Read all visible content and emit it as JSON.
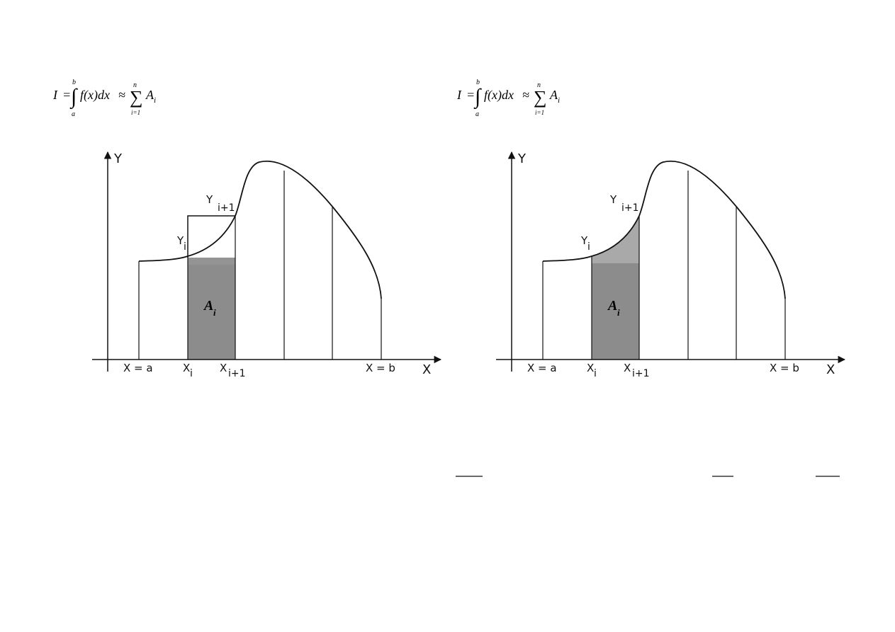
{
  "formula": {
    "lhs": "I",
    "eq": "=",
    "upper": "b",
    "lower": "a",
    "integrand": "f(x)dx",
    "approx": "≈",
    "sum_upper": "n",
    "sum_lower": "i=1",
    "term": "A",
    "term_sub": "i"
  },
  "panels": [
    {
      "name": "rectangle-method",
      "y_axis": "Y",
      "x_axis": "X",
      "x_a": "X = a",
      "x_b": "X = b",
      "x_i_main": "X",
      "x_i_sub": "i",
      "x_i1_main": "X",
      "x_i1_sub": "i+1",
      "y_i_main": "Y",
      "y_i_sub": "i",
      "y_i1_main": "Y",
      "y_i1_sub": "i+1",
      "area_main": "A",
      "area_sub": "i"
    },
    {
      "name": "trapezoid-method",
      "y_axis": "Y",
      "x_axis": "X",
      "x_a": "X = a",
      "x_b": "X = b",
      "x_i_main": "X",
      "x_i_sub": "i",
      "x_i1_main": "X",
      "x_i1_sub": "i+1",
      "y_i_main": "Y",
      "y_i_sub": "i",
      "y_i1_main": "Y",
      "y_i1_sub": "i+1",
      "area_main": "A",
      "area_sub": "i"
    }
  ],
  "colors": {
    "shade": "#8a8a8a",
    "shade_light": "#a8a8a8",
    "line": "#111111"
  }
}
